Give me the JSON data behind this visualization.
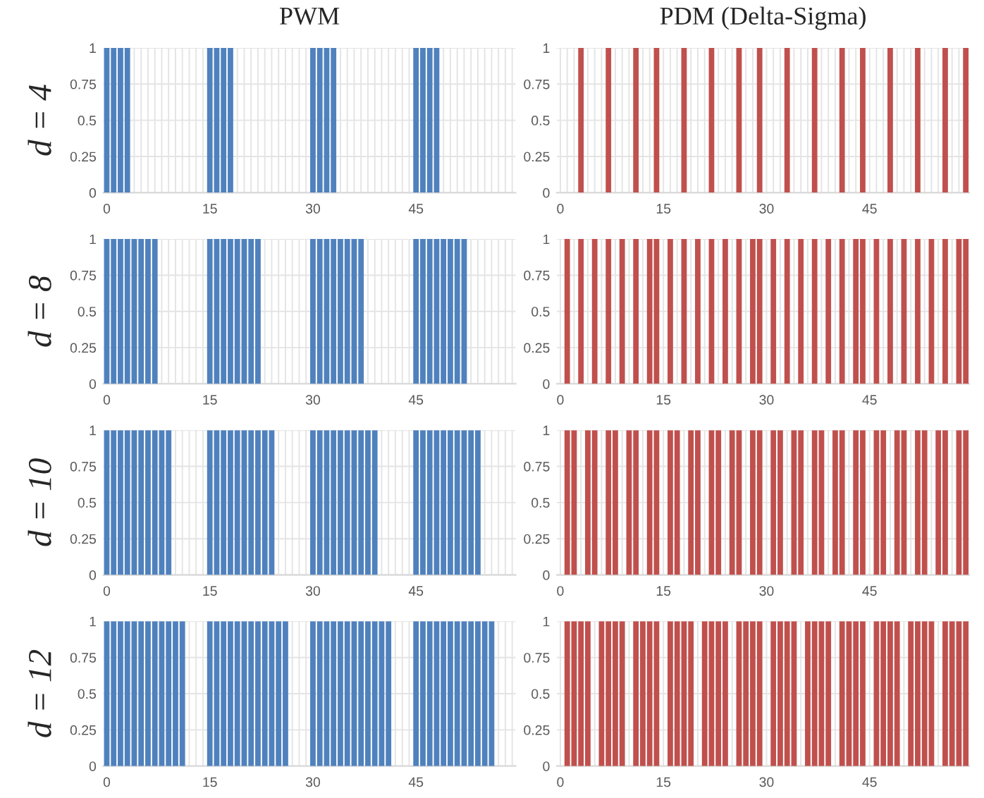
{
  "chart_data": [
    {
      "type": "bar",
      "title": "PWM",
      "ylabel": "d = 4",
      "color": "#4f81bd",
      "ylim": [
        0,
        1
      ],
      "yticks": [
        0,
        0.25,
        0.5,
        0.75,
        1
      ],
      "grid": true,
      "categories": [
        "0",
        null,
        null,
        null,
        null,
        null,
        null,
        null,
        null,
        null,
        null,
        null,
        null,
        null,
        null,
        "15",
        null,
        null,
        null,
        null,
        null,
        null,
        null,
        null,
        null,
        null,
        null,
        null,
        null,
        null,
        "30",
        null,
        null,
        null,
        null,
        null,
        null,
        null,
        null,
        null,
        null,
        null,
        null,
        null,
        null,
        "45",
        null,
        null,
        null,
        null,
        null,
        null,
        null,
        null,
        null,
        null,
        null,
        null,
        null,
        null
      ],
      "values": [
        1,
        1,
        1,
        1,
        0,
        0,
        0,
        0,
        0,
        0,
        0,
        0,
        0,
        0,
        0,
        1,
        1,
        1,
        1,
        0,
        0,
        0,
        0,
        0,
        0,
        0,
        0,
        0,
        0,
        0,
        1,
        1,
        1,
        1,
        0,
        0,
        0,
        0,
        0,
        0,
        0,
        0,
        0,
        0,
        0,
        1,
        1,
        1,
        1,
        0,
        0,
        0,
        0,
        0,
        0,
        0,
        0,
        0,
        0,
        0
      ]
    },
    {
      "type": "bar",
      "title": "PDM (Delta-Sigma)",
      "color": "#c0504d",
      "ylim": [
        0,
        1
      ],
      "yticks": [
        0,
        0.25,
        0.5,
        0.75,
        1
      ],
      "grid": true,
      "categories": [
        "0",
        null,
        null,
        null,
        null,
        null,
        null,
        null,
        null,
        null,
        null,
        null,
        null,
        null,
        null,
        "15",
        null,
        null,
        null,
        null,
        null,
        null,
        null,
        null,
        null,
        null,
        null,
        null,
        null,
        null,
        "30",
        null,
        null,
        null,
        null,
        null,
        null,
        null,
        null,
        null,
        null,
        null,
        null,
        null,
        null,
        "45",
        null,
        null,
        null,
        null,
        null,
        null,
        null,
        null,
        null,
        null,
        null,
        null,
        null,
        null
      ],
      "values": [
        0,
        0,
        0,
        1,
        0,
        0,
        0,
        1,
        0,
        0,
        0,
        1,
        0,
        0,
        1,
        0,
        0,
        0,
        1,
        0,
        0,
        0,
        1,
        0,
        0,
        0,
        1,
        0,
        0,
        1,
        0,
        0,
        0,
        1,
        0,
        0,
        0,
        1,
        0,
        0,
        0,
        1,
        0,
        0,
        1,
        0,
        0,
        0,
        1,
        0,
        0,
        0,
        1,
        0,
        0,
        0,
        1,
        0,
        0,
        1
      ]
    },
    {
      "type": "bar",
      "ylabel": "d = 8",
      "color": "#4f81bd",
      "ylim": [
        0,
        1
      ],
      "yticks": [
        0,
        0.25,
        0.5,
        0.75,
        1
      ],
      "grid": true,
      "categories": [
        "0",
        null,
        null,
        null,
        null,
        null,
        null,
        null,
        null,
        null,
        null,
        null,
        null,
        null,
        null,
        "15",
        null,
        null,
        null,
        null,
        null,
        null,
        null,
        null,
        null,
        null,
        null,
        null,
        null,
        null,
        "30",
        null,
        null,
        null,
        null,
        null,
        null,
        null,
        null,
        null,
        null,
        null,
        null,
        null,
        null,
        "45",
        null,
        null,
        null,
        null,
        null,
        null,
        null,
        null,
        null,
        null,
        null,
        null,
        null,
        null
      ],
      "values": [
        1,
        1,
        1,
        1,
        1,
        1,
        1,
        1,
        0,
        0,
        0,
        0,
        0,
        0,
        0,
        1,
        1,
        1,
        1,
        1,
        1,
        1,
        1,
        0,
        0,
        0,
        0,
        0,
        0,
        0,
        1,
        1,
        1,
        1,
        1,
        1,
        1,
        1,
        0,
        0,
        0,
        0,
        0,
        0,
        0,
        1,
        1,
        1,
        1,
        1,
        1,
        1,
        1,
        0,
        0,
        0,
        0,
        0,
        0,
        0
      ]
    },
    {
      "type": "bar",
      "color": "#c0504d",
      "ylim": [
        0,
        1
      ],
      "yticks": [
        0,
        0.25,
        0.5,
        0.75,
        1
      ],
      "grid": true,
      "categories": [
        "0",
        null,
        null,
        null,
        null,
        null,
        null,
        null,
        null,
        null,
        null,
        null,
        null,
        null,
        null,
        "15",
        null,
        null,
        null,
        null,
        null,
        null,
        null,
        null,
        null,
        null,
        null,
        null,
        null,
        null,
        "30",
        null,
        null,
        null,
        null,
        null,
        null,
        null,
        null,
        null,
        null,
        null,
        null,
        null,
        null,
        "45",
        null,
        null,
        null,
        null,
        null,
        null,
        null,
        null,
        null,
        null,
        null,
        null,
        null,
        null
      ],
      "values": [
        0,
        1,
        0,
        1,
        0,
        1,
        0,
        1,
        0,
        1,
        0,
        1,
        0,
        1,
        1,
        0,
        1,
        0,
        1,
        0,
        1,
        0,
        1,
        0,
        1,
        0,
        1,
        0,
        1,
        1,
        0,
        1,
        0,
        1,
        0,
        1,
        0,
        1,
        0,
        1,
        0,
        1,
        0,
        1,
        1,
        0,
        1,
        0,
        1,
        0,
        1,
        0,
        1,
        0,
        1,
        0,
        1,
        0,
        1,
        1
      ]
    },
    {
      "type": "bar",
      "ylabel": "d = 10",
      "color": "#4f81bd",
      "ylim": [
        0,
        1
      ],
      "yticks": [
        0,
        0.25,
        0.5,
        0.75,
        1
      ],
      "grid": true,
      "categories": [
        "0",
        null,
        null,
        null,
        null,
        null,
        null,
        null,
        null,
        null,
        null,
        null,
        null,
        null,
        null,
        "15",
        null,
        null,
        null,
        null,
        null,
        null,
        null,
        null,
        null,
        null,
        null,
        null,
        null,
        null,
        "30",
        null,
        null,
        null,
        null,
        null,
        null,
        null,
        null,
        null,
        null,
        null,
        null,
        null,
        null,
        "45",
        null,
        null,
        null,
        null,
        null,
        null,
        null,
        null,
        null,
        null,
        null,
        null,
        null,
        null
      ],
      "values": [
        1,
        1,
        1,
        1,
        1,
        1,
        1,
        1,
        1,
        1,
        0,
        0,
        0,
        0,
        0,
        1,
        1,
        1,
        1,
        1,
        1,
        1,
        1,
        1,
        1,
        0,
        0,
        0,
        0,
        0,
        1,
        1,
        1,
        1,
        1,
        1,
        1,
        1,
        1,
        1,
        0,
        0,
        0,
        0,
        0,
        1,
        1,
        1,
        1,
        1,
        1,
        1,
        1,
        1,
        1,
        0,
        0,
        0,
        0,
        0
      ]
    },
    {
      "type": "bar",
      "color": "#c0504d",
      "ylim": [
        0,
        1
      ],
      "yticks": [
        0,
        0.25,
        0.5,
        0.75,
        1
      ],
      "grid": true,
      "categories": [
        "0",
        null,
        null,
        null,
        null,
        null,
        null,
        null,
        null,
        null,
        null,
        null,
        null,
        null,
        null,
        "15",
        null,
        null,
        null,
        null,
        null,
        null,
        null,
        null,
        null,
        null,
        null,
        null,
        null,
        null,
        "30",
        null,
        null,
        null,
        null,
        null,
        null,
        null,
        null,
        null,
        null,
        null,
        null,
        null,
        null,
        "45",
        null,
        null,
        null,
        null,
        null,
        null,
        null,
        null,
        null,
        null,
        null,
        null,
        null,
        null
      ],
      "values": [
        0,
        1,
        1,
        0,
        1,
        1,
        0,
        1,
        1,
        0,
        1,
        1,
        0,
        1,
        1,
        0,
        1,
        1,
        0,
        1,
        1,
        0,
        1,
        1,
        0,
        1,
        1,
        0,
        1,
        1,
        0,
        1,
        1,
        0,
        1,
        1,
        0,
        1,
        1,
        0,
        1,
        1,
        0,
        1,
        1,
        0,
        1,
        1,
        0,
        1,
        1,
        0,
        1,
        1,
        0,
        1,
        1,
        0,
        1,
        1
      ]
    },
    {
      "type": "bar",
      "ylabel": "d = 12",
      "color": "#4f81bd",
      "ylim": [
        0,
        1
      ],
      "yticks": [
        0,
        0.25,
        0.5,
        0.75,
        1
      ],
      "grid": true,
      "categories": [
        "0",
        null,
        null,
        null,
        null,
        null,
        null,
        null,
        null,
        null,
        null,
        null,
        null,
        null,
        null,
        "15",
        null,
        null,
        null,
        null,
        null,
        null,
        null,
        null,
        null,
        null,
        null,
        null,
        null,
        null,
        "30",
        null,
        null,
        null,
        null,
        null,
        null,
        null,
        null,
        null,
        null,
        null,
        null,
        null,
        null,
        "45",
        null,
        null,
        null,
        null,
        null,
        null,
        null,
        null,
        null,
        null,
        null,
        null,
        null,
        null
      ],
      "values": [
        1,
        1,
        1,
        1,
        1,
        1,
        1,
        1,
        1,
        1,
        1,
        1,
        0,
        0,
        0,
        1,
        1,
        1,
        1,
        1,
        1,
        1,
        1,
        1,
        1,
        1,
        1,
        0,
        0,
        0,
        1,
        1,
        1,
        1,
        1,
        1,
        1,
        1,
        1,
        1,
        1,
        1,
        0,
        0,
        0,
        1,
        1,
        1,
        1,
        1,
        1,
        1,
        1,
        1,
        1,
        1,
        1,
        0,
        0,
        0
      ]
    },
    {
      "type": "bar",
      "color": "#c0504d",
      "ylim": [
        0,
        1
      ],
      "yticks": [
        0,
        0.25,
        0.5,
        0.75,
        1
      ],
      "grid": true,
      "categories": [
        "0",
        null,
        null,
        null,
        null,
        null,
        null,
        null,
        null,
        null,
        null,
        null,
        null,
        null,
        null,
        "15",
        null,
        null,
        null,
        null,
        null,
        null,
        null,
        null,
        null,
        null,
        null,
        null,
        null,
        null,
        "30",
        null,
        null,
        null,
        null,
        null,
        null,
        null,
        null,
        null,
        null,
        null,
        null,
        null,
        null,
        "45",
        null,
        null,
        null,
        null,
        null,
        null,
        null,
        null,
        null,
        null,
        null,
        null,
        null,
        null
      ],
      "values": [
        0,
        1,
        1,
        1,
        1,
        0,
        1,
        1,
        1,
        1,
        0,
        1,
        1,
        1,
        1,
        0,
        1,
        1,
        1,
        1,
        0,
        1,
        1,
        1,
        1,
        0,
        1,
        1,
        1,
        1,
        0,
        1,
        1,
        1,
        1,
        0,
        1,
        1,
        1,
        1,
        0,
        1,
        1,
        1,
        1,
        0,
        1,
        1,
        1,
        1,
        0,
        1,
        1,
        1,
        1,
        0,
        1,
        1,
        1,
        1
      ]
    }
  ]
}
